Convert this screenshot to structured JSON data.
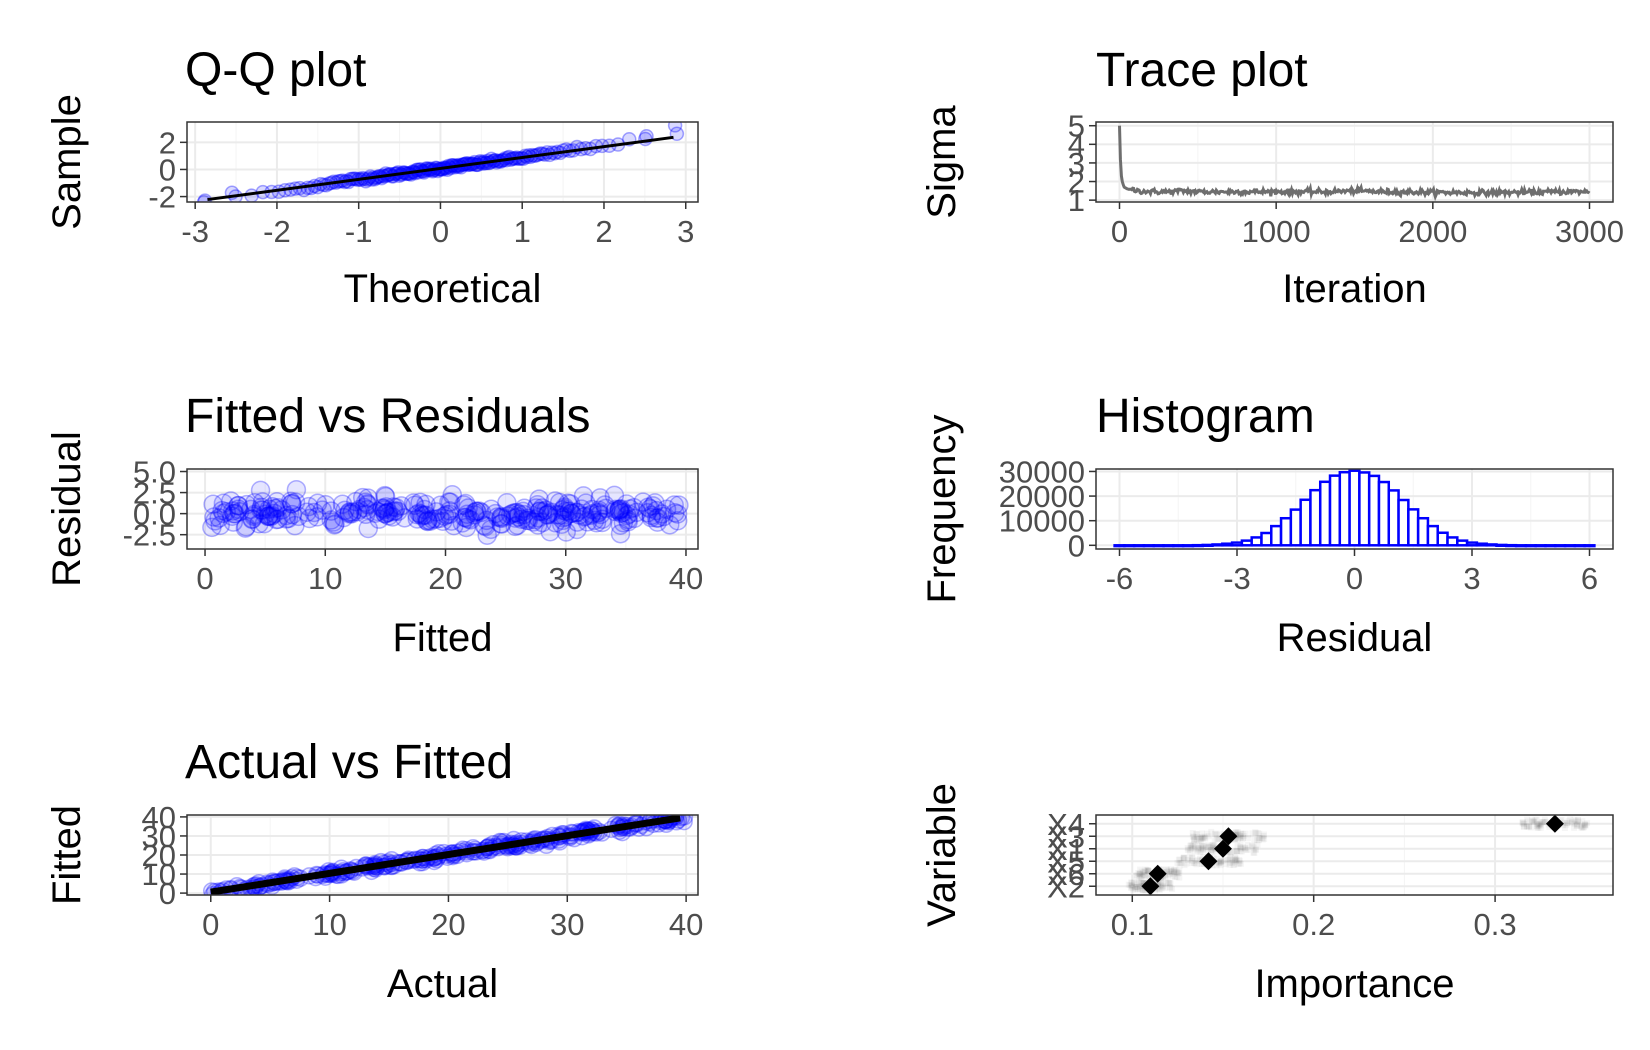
{
  "chart_data": [
    {
      "id": "qq",
      "type": "scatter",
      "title": "Q-Q plot",
      "xlabel": "Theoretical",
      "ylabel": "Sample",
      "xlim": [
        -3.1,
        3.15
      ],
      "ylim": [
        -2.4,
        3.5
      ],
      "xticks": [
        -3,
        -2,
        -1,
        0,
        1,
        2,
        3
      ],
      "xtick_labels": [
        "-3",
        "-2",
        "-1",
        "0",
        "1",
        "2",
        "3"
      ],
      "yticks": [
        -2,
        0,
        2
      ],
      "ytick_labels": [
        "-2",
        "0",
        "2"
      ],
      "grid": true,
      "point_color": "#0000ff",
      "points_note_count": 200,
      "reference_line": {
        "x": [
          -2.85,
          2.85
        ],
        "y": [
          -2.22,
          2.37
        ],
        "color": "#000000"
      },
      "extreme_points": {
        "x": [
          -2.88,
          -2.55,
          2.52,
          2.87
        ],
        "y": [
          -2.3,
          -1.72,
          2.45,
          3.25
        ]
      }
    },
    {
      "id": "trace",
      "type": "line",
      "title": "Trace plot",
      "xlabel": "Iteration",
      "ylabel": "Sigma",
      "xlim": [
        -150,
        3150
      ],
      "ylim": [
        0.9,
        5.2
      ],
      "xticks": [
        0,
        1000,
        2000,
        3000
      ],
      "xtick_labels": [
        "0",
        "1000",
        "2000",
        "3000"
      ],
      "yticks": [
        1,
        2,
        3,
        4,
        5
      ],
      "ytick_labels": [
        "1",
        "2",
        "3",
        "4",
        "5"
      ],
      "grid": true,
      "line_color": "#6e6e6e",
      "series": {
        "x": [
          0,
          5,
          10,
          20,
          30,
          50,
          80,
          120,
          200,
          300,
          400,
          500,
          700,
          1000,
          1300,
          1500,
          1700,
          2000,
          2300,
          2600,
          2800,
          3000
        ],
        "y": [
          5.0,
          3.4,
          2.4,
          1.9,
          1.7,
          1.6,
          1.55,
          1.5,
          1.45,
          1.45,
          1.5,
          1.45,
          1.45,
          1.45,
          1.45,
          1.5,
          1.45,
          1.42,
          1.4,
          1.42,
          1.45,
          1.45
        ]
      }
    },
    {
      "id": "fitres",
      "type": "scatter",
      "title": "Fitted vs Residuals",
      "xlabel": "Fitted",
      "ylabel": "Residual",
      "xlim": [
        -1.5,
        41
      ],
      "ylim": [
        -4.2,
        5.3
      ],
      "xticks": [
        0,
        10,
        20,
        30,
        40
      ],
      "xtick_labels": [
        "0",
        "10",
        "20",
        "30",
        "40"
      ],
      "yticks": [
        -2.5,
        0.0,
        2.5,
        5.0
      ],
      "ytick_labels": [
        "-2.5",
        "0.0",
        "2.5",
        "5.0"
      ],
      "grid": true,
      "point_color": "#0000ff",
      "x_range_of_points": [
        0.5,
        39.5
      ],
      "y_range_of_points": [
        -2.8,
        3.8
      ]
    },
    {
      "id": "hist",
      "type": "bar",
      "title": "Histogram",
      "xlabel": "Residual",
      "ylabel": "Frequency",
      "xlim": [
        -6.6,
        6.6
      ],
      "ylim": [
        -1500,
        31000
      ],
      "xticks": [
        -6,
        -3,
        0,
        3,
        6
      ],
      "xtick_labels": [
        "-6",
        "-3",
        "0",
        "3",
        "6"
      ],
      "yticks": [
        0,
        10000,
        20000,
        30000
      ],
      "ytick_labels": [
        "0",
        "10000",
        "20000",
        "30000"
      ],
      "grid": true,
      "bar_color": "#0000ff",
      "bin_width": 0.25,
      "x": [
        -6.0,
        -5.75,
        -5.5,
        -5.25,
        -5.0,
        -4.75,
        -4.5,
        -4.25,
        -4.0,
        -3.75,
        -3.5,
        -3.25,
        -3.0,
        -2.75,
        -2.5,
        -2.25,
        -2.0,
        -1.75,
        -1.5,
        -1.25,
        -1.0,
        -0.75,
        -0.5,
        -0.25,
        0.0,
        0.25,
        0.5,
        0.75,
        1.0,
        1.25,
        1.5,
        1.75,
        2.0,
        2.25,
        2.5,
        2.75,
        3.0,
        3.25,
        3.5,
        3.75,
        4.0,
        4.25,
        4.5,
        4.75,
        5.0,
        5.25,
        5.5,
        5.75,
        6.0
      ],
      "values": [
        0,
        0,
        0,
        0,
        0,
        0,
        0,
        0,
        50,
        150,
        350,
        650,
        1100,
        1900,
        3200,
        5000,
        7800,
        11000,
        14500,
        18500,
        22400,
        25800,
        28300,
        29700,
        30300,
        29600,
        28200,
        25700,
        22300,
        18400,
        14600,
        11000,
        7800,
        5100,
        3200,
        1900,
        1100,
        650,
        350,
        150,
        50,
        0,
        0,
        0,
        0,
        0,
        0,
        0,
        0
      ]
    },
    {
      "id": "actfit",
      "type": "scatter",
      "title": "Actual vs Fitted",
      "xlabel": "Actual",
      "ylabel": "Fitted",
      "xlim": [
        -2,
        41
      ],
      "ylim": [
        -1,
        41
      ],
      "xticks": [
        0,
        10,
        20,
        30,
        40
      ],
      "xtick_labels": [
        "0",
        "10",
        "20",
        "30",
        "40"
      ],
      "yticks": [
        0,
        10,
        20,
        30,
        40
      ],
      "ytick_labels": [
        "0",
        "10",
        "20",
        "30",
        "40"
      ],
      "grid": true,
      "point_color": "#0000ff",
      "fit_line": {
        "x": [
          0,
          39.5
        ],
        "y": [
          0.5,
          39.5
        ],
        "color": "#000000"
      }
    },
    {
      "id": "importance",
      "type": "scatter",
      "title": "",
      "xlabel": "Importance",
      "ylabel": "Variable",
      "xlim": [
        0.08,
        0.365
      ],
      "ylim": [
        0.3,
        6.7
      ],
      "xticks": [
        0.1,
        0.2,
        0.3
      ],
      "xtick_labels": [
        "0.1",
        "0.2",
        "0.3"
      ],
      "categories": [
        "X2",
        "X6",
        "X5",
        "X1",
        "X3",
        "X4"
      ],
      "values": [
        0.11,
        0.114,
        0.142,
        0.15,
        0.153,
        0.333
      ],
      "spread": [
        0.012,
        0.012,
        0.018,
        0.02,
        0.02,
        0.018
      ],
      "marker_color": "#000000",
      "grid": true
    }
  ]
}
